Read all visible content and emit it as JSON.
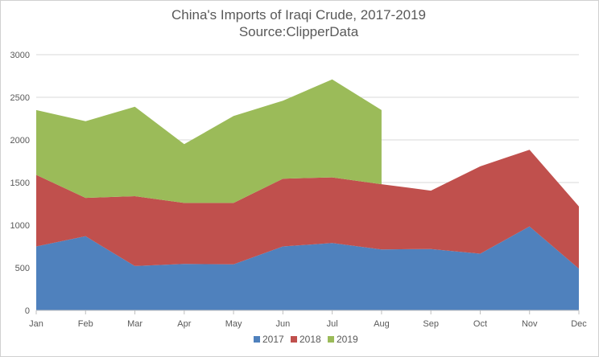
{
  "chart_data": {
    "type": "area",
    "stacked": true,
    "title": "China's Imports of Iraqi Crude, 2017-2019",
    "subtitle": "Source:ClipperData",
    "categories": [
      "Jan",
      "Feb",
      "Mar",
      "Apr",
      "May",
      "Jun",
      "Jul",
      "Aug",
      "Sep",
      "Oct",
      "Nov",
      "Dec"
    ],
    "ylim": [
      0,
      3000
    ],
    "yticks": [
      "0",
      "500",
      "1000",
      "1500",
      "2000",
      "2500",
      "3000"
    ],
    "grid": true,
    "legend_position": "bottom",
    "series": [
      {
        "name": "2017",
        "color": "#4f81bd",
        "values": [
          750,
          870,
          520,
          545,
          540,
          750,
          790,
          715,
          720,
          665,
          985,
          490
        ]
      },
      {
        "name": "2018",
        "color": "#c0504d",
        "values": [
          840,
          450,
          820,
          715,
          720,
          795,
          770,
          765,
          685,
          1025,
          900,
          730
        ]
      },
      {
        "name": "2019",
        "color": "#9bbb59",
        "values": [
          760,
          900,
          1050,
          690,
          1020,
          915,
          1150,
          870,
          null,
          null,
          null,
          null
        ]
      }
    ]
  }
}
